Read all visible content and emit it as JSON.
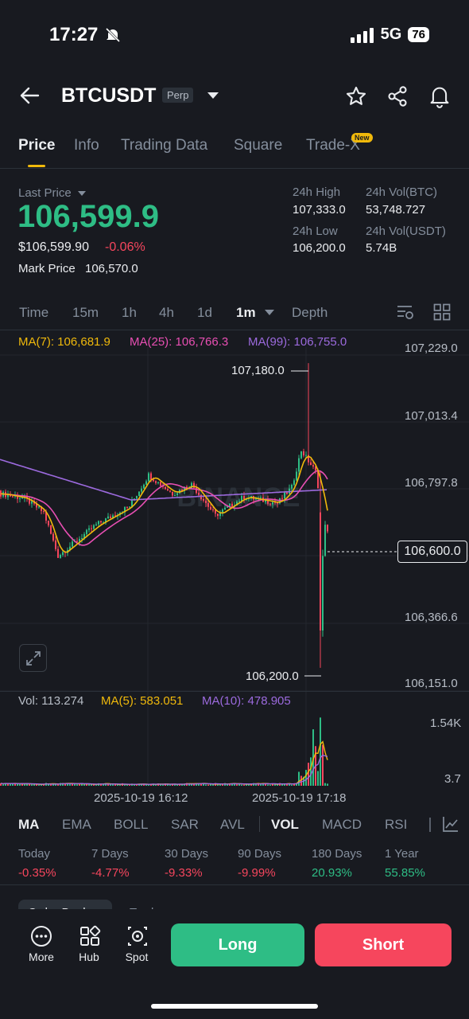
{
  "status": {
    "time": "17:27",
    "network": "5G",
    "battery": "76"
  },
  "header": {
    "symbol": "BTCUSDT",
    "badge": "Perp"
  },
  "tabs": [
    {
      "label": "Price"
    },
    {
      "label": "Info"
    },
    {
      "label": "Trading Data"
    },
    {
      "label": "Square"
    },
    {
      "label": "Trade-X"
    }
  ],
  "new_badge": "New",
  "price": {
    "last_price_label": "Last Price",
    "last_price": "106,599.9",
    "usd_price": "$106,599.90",
    "change_pct": "-0.06%",
    "mark_price_label": "Mark Price",
    "mark_price": "106,570.0"
  },
  "stats": {
    "high_label": "24h High",
    "high_value": "107,333.0",
    "low_label": "24h Low",
    "low_value": "106,200.0",
    "vol_btc_label": "24h Vol(BTC)",
    "vol_btc_value": "53,748.727",
    "vol_usdt_label": "24h Vol(USDT)",
    "vol_usdt_value": "5.74B"
  },
  "intervals": [
    {
      "label": "Time"
    },
    {
      "label": "15m"
    },
    {
      "label": "1h"
    },
    {
      "label": "4h"
    },
    {
      "label": "1d"
    },
    {
      "label": "1m"
    },
    {
      "label": "Depth"
    }
  ],
  "ma": {
    "ma7": "MA(7): 106,681.9",
    "ma25": "MA(25): 106,766.3",
    "ma99": "MA(99): 106,755.0"
  },
  "colors": {
    "ma7": "#f0b90b",
    "ma25": "#e84fb3",
    "ma99": "#9c6ade",
    "up": "#2ebd85",
    "down": "#f6465d"
  },
  "chart": {
    "y_labels": [
      "107,229.0",
      "107,013.4",
      "106,797.8",
      "106,366.6",
      "106,151.0"
    ],
    "current_price": "106,600.0",
    "high_label": "107,180.0",
    "low_label": "106,200.0",
    "watermark": "BINANCE"
  },
  "volume": {
    "vol": "Vol: 113.274",
    "ma5": "MA(5): 583.051",
    "ma10": "MA(10): 478.905",
    "y_labels": [
      "1.54K",
      "3.7"
    ],
    "x_labels": [
      "2025-10-19 16:12",
      "2025-10-19 17:18"
    ]
  },
  "chart_data": {
    "type": "candlestick",
    "ylim": [
      106151.0,
      107229.0
    ],
    "high": 107180.0,
    "low": 106200.0,
    "last": 106600.0,
    "x_labels": [
      "2025-10-19 16:12",
      "2025-10-19 17:18"
    ]
  },
  "indicators": [
    {
      "label": "MA"
    },
    {
      "label": "EMA"
    },
    {
      "label": "BOLL"
    },
    {
      "label": "SAR"
    },
    {
      "label": "AVL"
    },
    {
      "label": "VOL"
    },
    {
      "label": "MACD"
    },
    {
      "label": "RSI"
    }
  ],
  "performance": [
    {
      "label": "Today",
      "value": "-0.35%"
    },
    {
      "label": "7 Days",
      "value": "-4.77%"
    },
    {
      "label": "30 Days",
      "value": "-9.33%"
    },
    {
      "label": "90 Days",
      "value": "-9.99%"
    },
    {
      "label": "180 Days",
      "value": "20.93%"
    },
    {
      "label": "1 Year",
      "value": "55.85%"
    }
  ],
  "peek": {
    "order_book": "Order Book",
    "trades": "Trades"
  },
  "bottom_nav": [
    {
      "label": "More"
    },
    {
      "label": "Hub"
    },
    {
      "label": "Spot"
    }
  ],
  "actions": {
    "long": "Long",
    "short": "Short"
  }
}
